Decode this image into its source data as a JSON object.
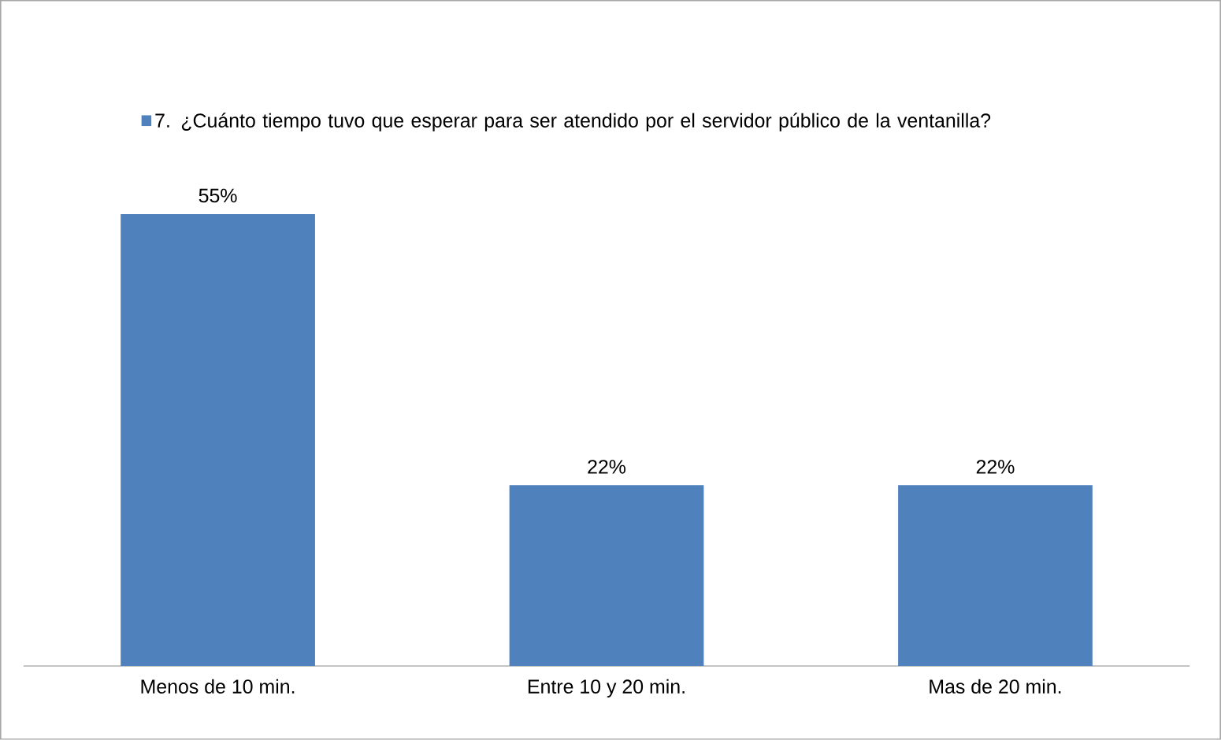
{
  "chart_data": {
    "type": "bar",
    "categories": [
      "Menos de 10 min.",
      "Entre 10 y 20 min.",
      "Mas de 20 min."
    ],
    "series": [
      {
        "name": "7. ¿Cuánto tiempo tuvo que esperar para ser atendido por el servidor público de la ventanilla?",
        "color": "#4f81bd",
        "values": [
          55,
          22,
          22
        ],
        "value_labels": [
          "55%",
          "22%",
          "22%"
        ]
      }
    ],
    "legend": "top"
  }
}
